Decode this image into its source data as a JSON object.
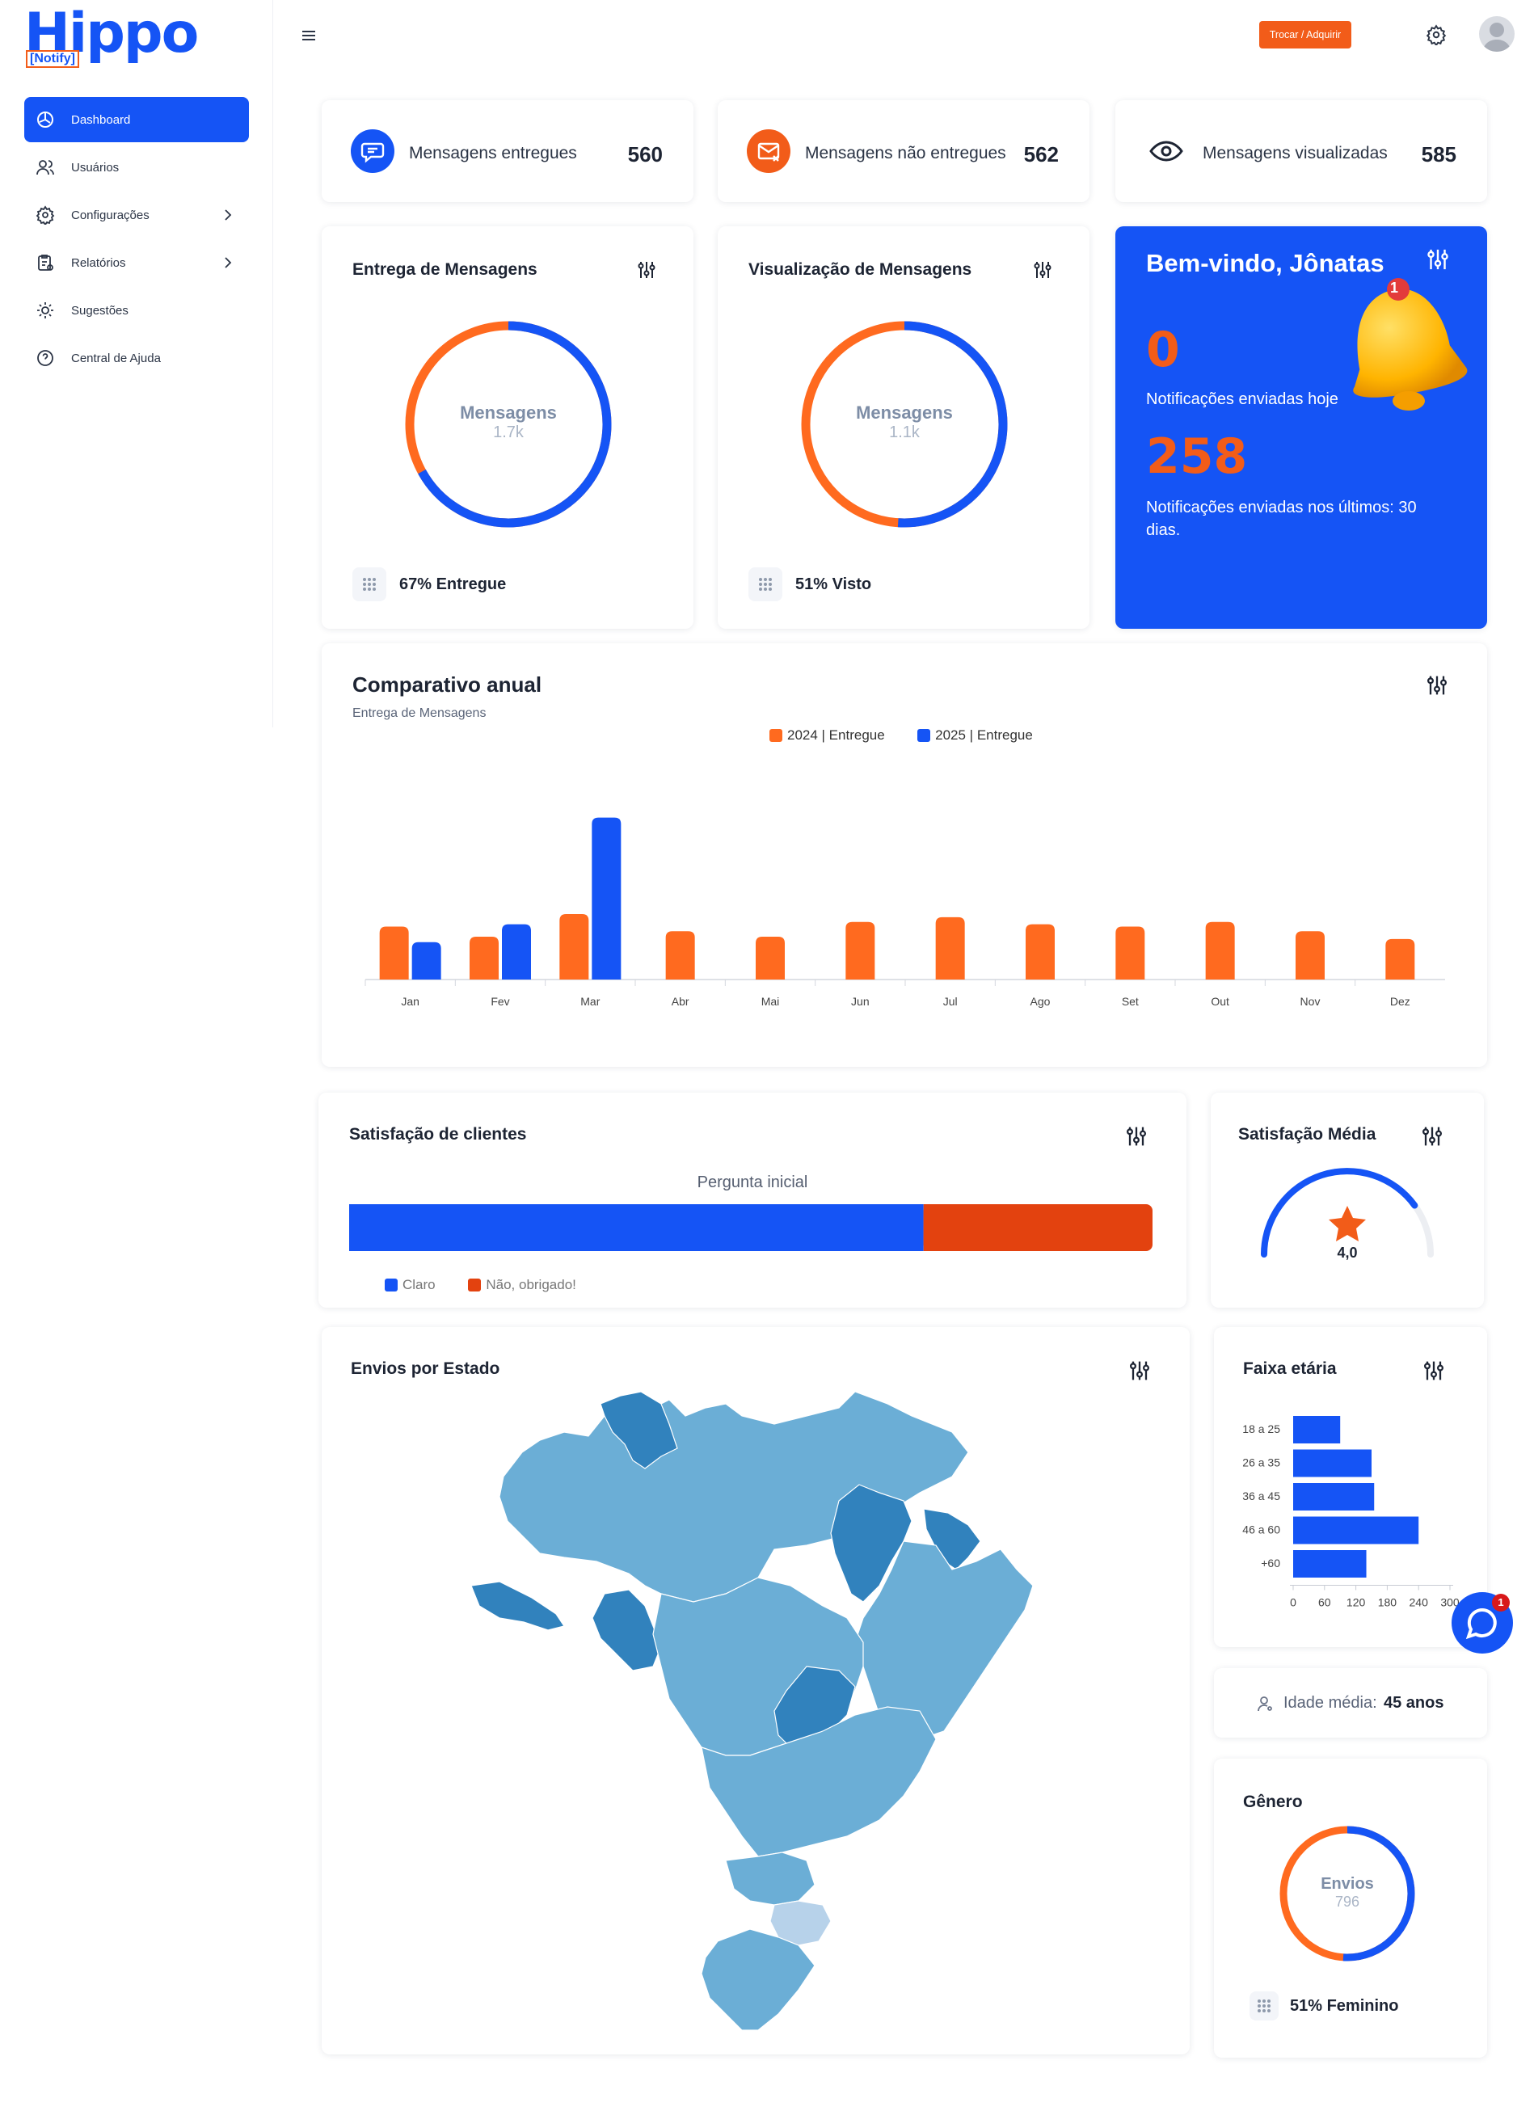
{
  "brand": {
    "name": "Hippo",
    "sub": "[Notify]"
  },
  "sidebar": {
    "items": [
      {
        "label": "Dashboard",
        "icon": "dashboard-icon",
        "active": true
      },
      {
        "label": "Usuários",
        "icon": "users-icon"
      },
      {
        "label": "Configurações",
        "icon": "gear-icon",
        "has_chevron": true
      },
      {
        "label": "Relatórios",
        "icon": "report-icon",
        "has_chevron": true
      },
      {
        "label": "Sugestões",
        "icon": "suggestion-icon"
      },
      {
        "label": "Central de Ajuda",
        "icon": "help-icon"
      }
    ]
  },
  "topbar": {
    "plan_button": "Trocar / Adquirir plano"
  },
  "stats": [
    {
      "label": "Mensagens entregues",
      "value": "560",
      "icon": "message-icon",
      "color": "#1554f5"
    },
    {
      "label": "Mensagens não entregues",
      "value": "562",
      "icon": "mail-x-icon",
      "color": "#f25c19"
    },
    {
      "label": "Mensagens visualizadas",
      "value": "585",
      "icon": "eye-icon",
      "color": "#1d2433"
    }
  ],
  "delivery": {
    "title": "Entrega de Mensagens",
    "center_label": "Mensagens",
    "center_value": "1.7k",
    "footer": "67% Entregue",
    "fraction_blue": 0.67
  },
  "views": {
    "title": "Visualização de Mensagens",
    "center_label": "Mensagens",
    "center_value": "1.1k",
    "footer": "51% Visto",
    "fraction_blue": 0.51
  },
  "welcome": {
    "title": "Bem-vindo, Jônatas",
    "today_value": "0",
    "today_label": "Notificações enviadas hoje",
    "month_value": "258",
    "month_label": "Notificações enviadas nos últimos: 30 dias.",
    "bell_badge": "1"
  },
  "annual": {
    "title": "Comparativo anual",
    "subtitle": "Entrega de Mensagens",
    "chart_data": {
      "type": "bar",
      "categories": [
        "Jan",
        "Fev",
        "Mar",
        "Abr",
        "Mai",
        "Jun",
        "Jul",
        "Ago",
        "Set",
        "Out",
        "Nov",
        "Dez"
      ],
      "series": [
        {
          "name": "2024 | Entregue",
          "color": "#ff6a1f",
          "values": [
            68,
            55,
            84,
            62,
            55,
            74,
            80,
            71,
            68,
            74,
            62,
            52
          ]
        },
        {
          "name": "2025 | Entregue",
          "color": "#1554f5",
          "values": [
            48,
            71,
            208,
            null,
            null,
            null,
            null,
            null,
            null,
            null,
            null,
            null
          ]
        }
      ],
      "ylim": [
        0,
        220
      ],
      "legend_position": "top-center",
      "grid": false
    }
  },
  "satisfaction": {
    "title": "Satisfação de clientes",
    "question": "Pergunta inicial",
    "chart_data": {
      "type": "bar",
      "orientation": "horizontal-stacked",
      "categories": [
        "Pergunta inicial"
      ],
      "series": [
        {
          "name": "Claro",
          "color": "#1554f5",
          "values": [
            0.715
          ]
        },
        {
          "name": "Não, obrigado!",
          "color": "#e3420f",
          "values": [
            0.285
          ]
        }
      ]
    }
  },
  "avg_satisfaction": {
    "title": "Satisfação Média",
    "value": "4,0",
    "fraction": 0.8
  },
  "states": {
    "title": "Envios por Estado"
  },
  "age": {
    "title": "Faixa etária",
    "chart_data": {
      "type": "bar",
      "orientation": "horizontal",
      "categories": [
        "18 a 25",
        "26 a 35",
        "36 a 45",
        "46 a 60",
        "+60"
      ],
      "values": [
        90,
        150,
        155,
        240,
        140
      ],
      "xticks": [
        "0",
        "60",
        "120",
        "180",
        "240",
        "300"
      ],
      "xlim": [
        0,
        300
      ]
    },
    "average_label": "Idade média:",
    "average_value": "45 anos"
  },
  "gender": {
    "title": "Gênero",
    "center_label": "Envios",
    "center_value": "796",
    "footer": "51% Feminino",
    "fraction_blue": 0.51
  },
  "chat_badge": "1"
}
